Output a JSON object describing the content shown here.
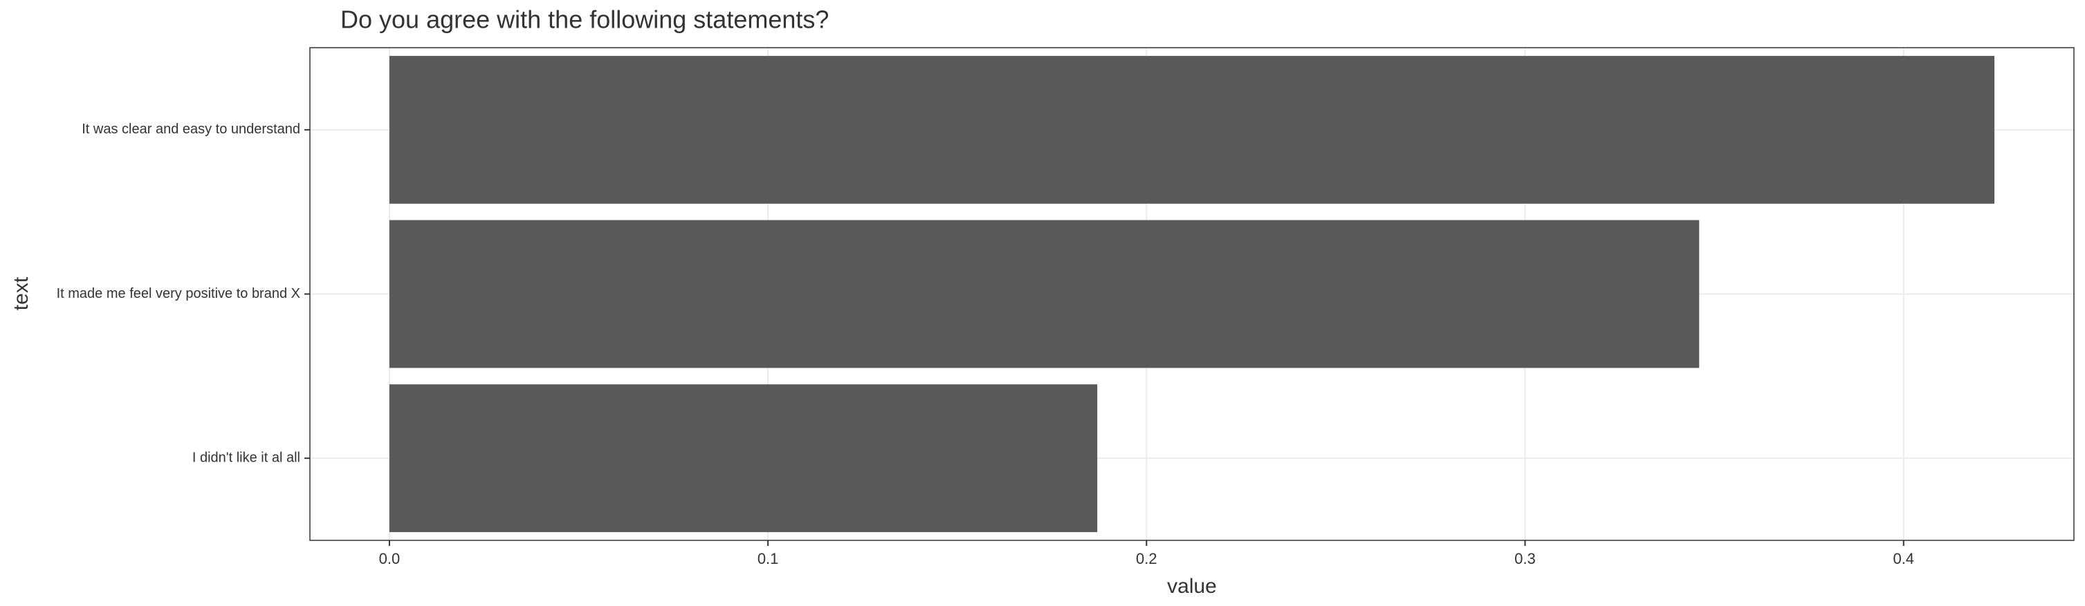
{
  "chart_data": {
    "type": "bar",
    "orientation": "horizontal",
    "title": "Do you agree with the following statements?",
    "x_label": "value",
    "y_label": "text",
    "categories": [
      "It was clear and easy to understand",
      "It made me feel very positive to brand X",
      "I didn't like it al all"
    ],
    "values": [
      0.424,
      0.346,
      0.187
    ],
    "color": "#595959",
    "xlim": [
      -0.021,
      0.445
    ],
    "xticks": [
      {
        "value": 0,
        "label": "0.0"
      },
      0.1,
      0.2,
      0.3,
      0.4
    ],
    "grid": true
  }
}
